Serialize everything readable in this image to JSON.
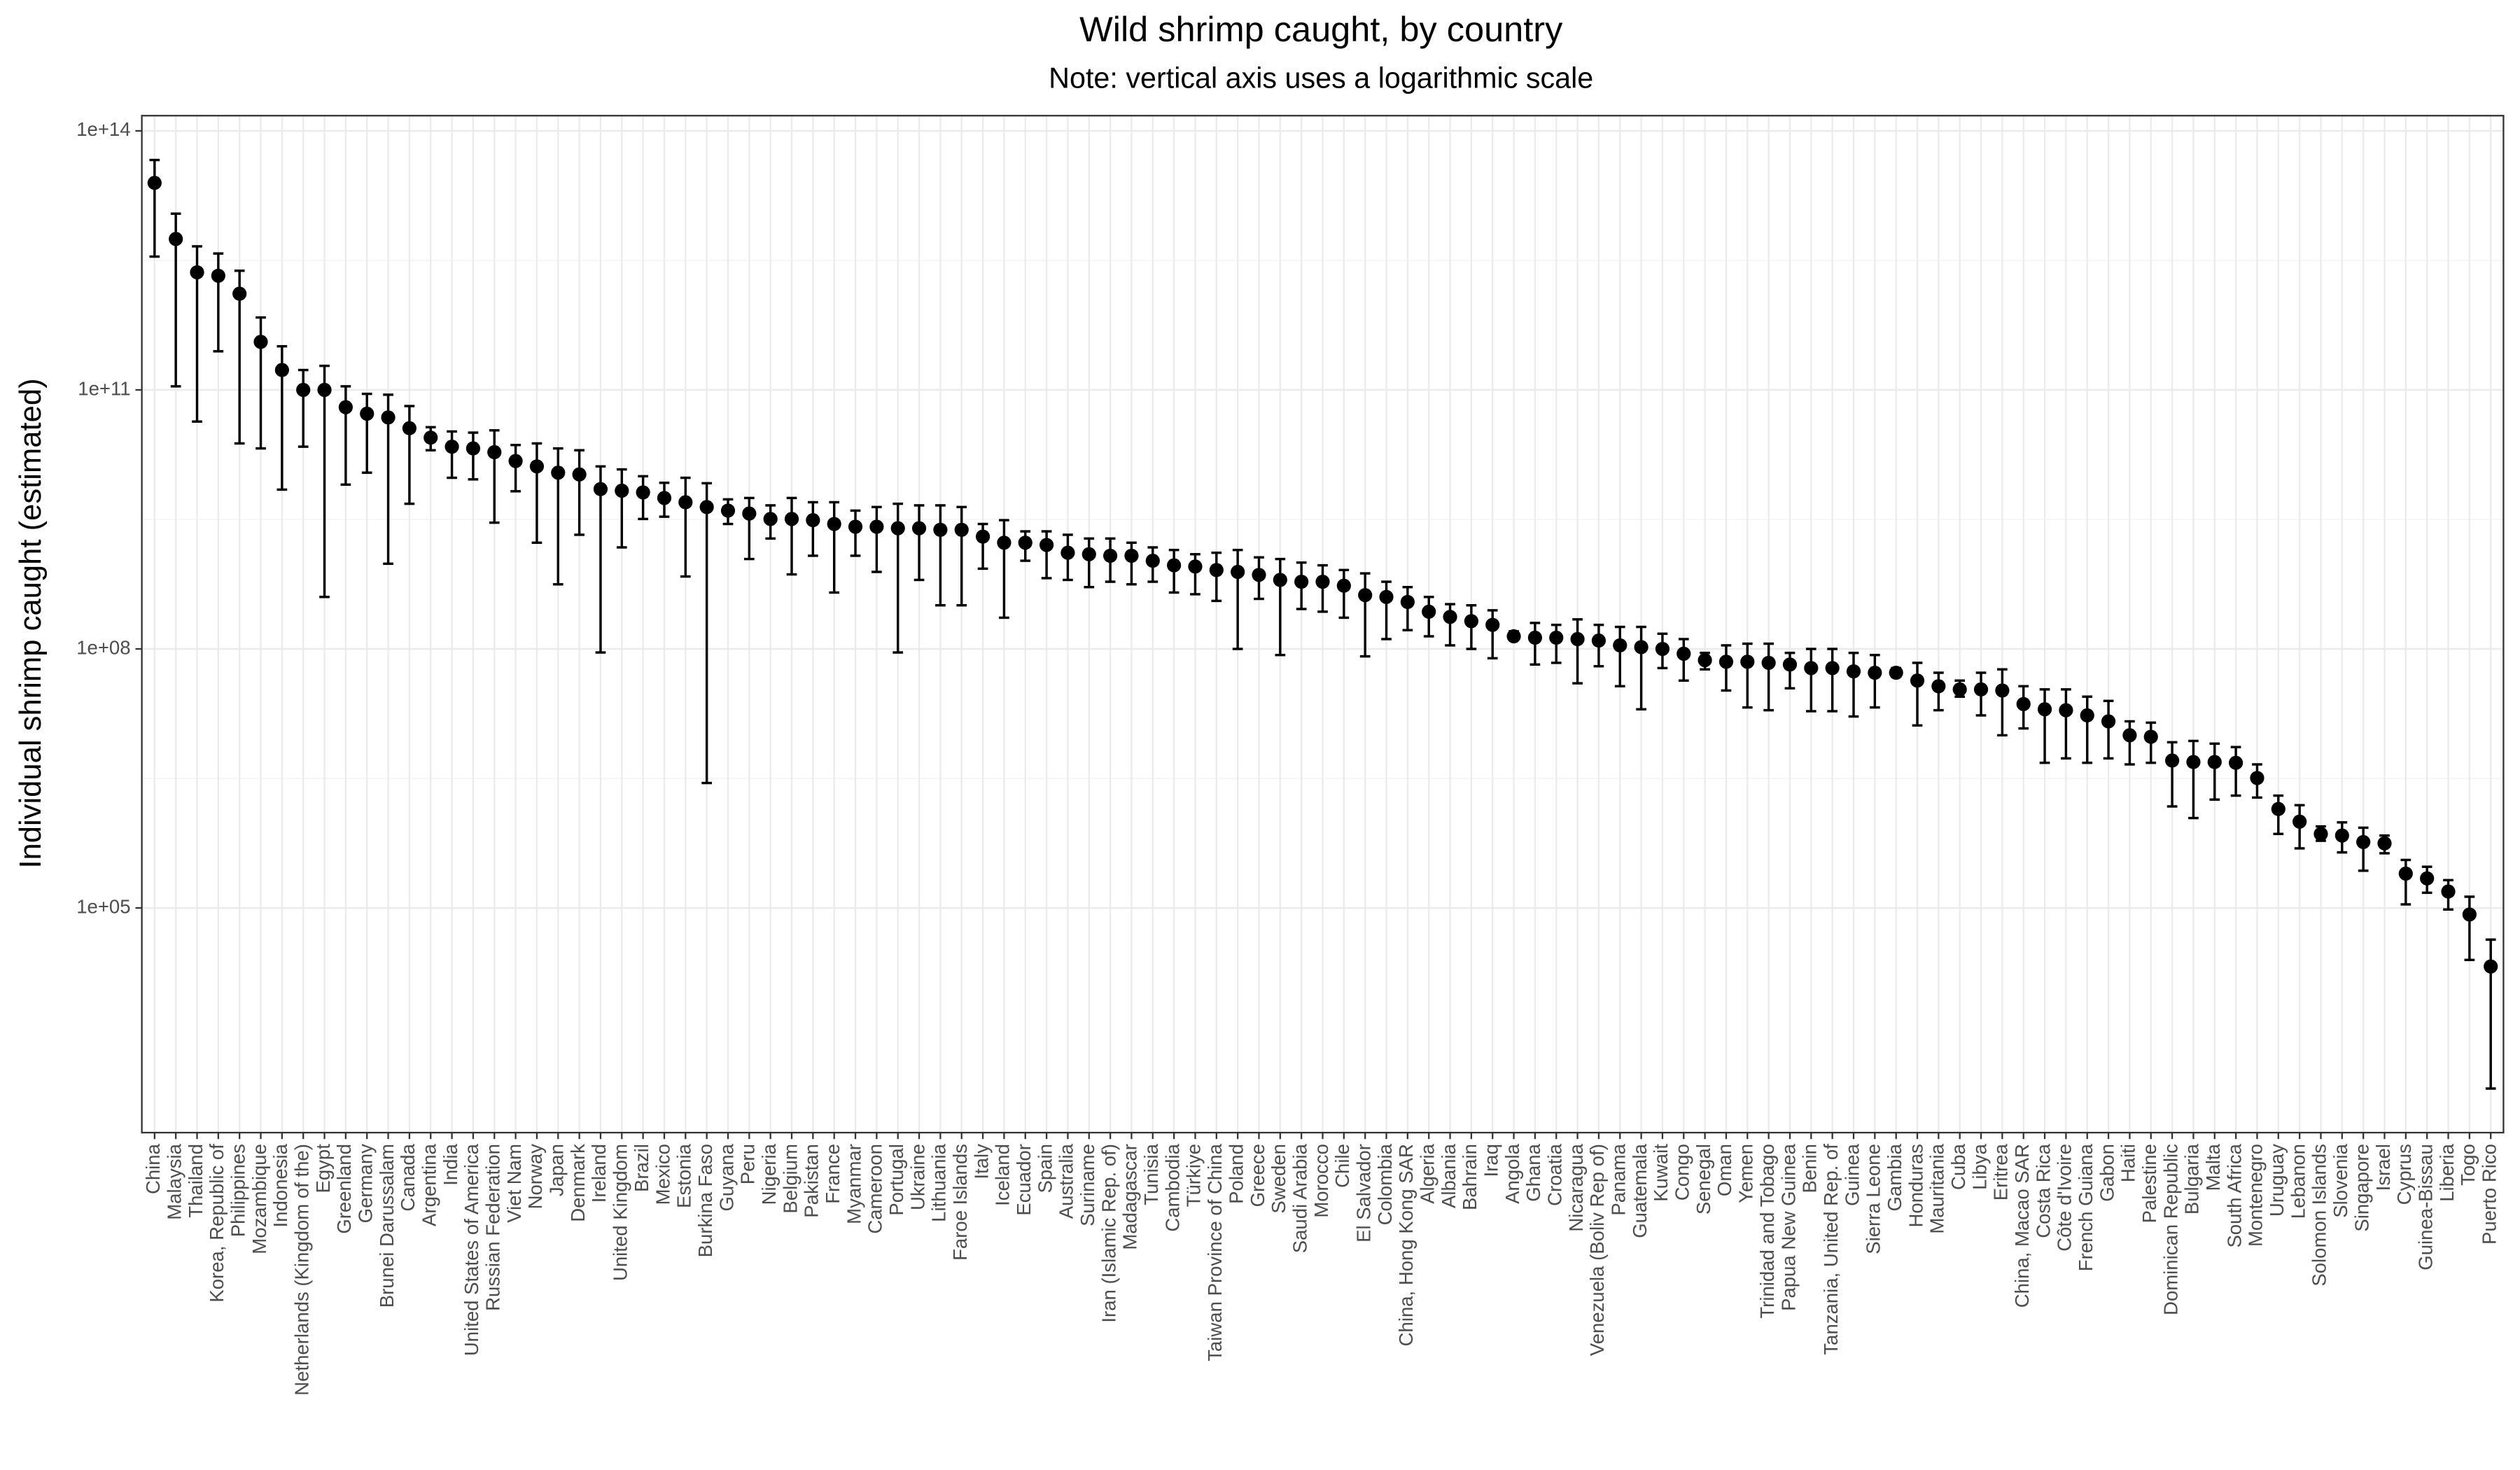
{
  "chart_data": {
    "type": "pointrange",
    "title": "Wild shrimp caught, by country",
    "subtitle": "Note: vertical axis uses a logarithmic scale",
    "y_label": "Individual shrimp caught (estimated)",
    "log_y": true,
    "grid": true,
    "color": "#000000",
    "ylim": [
      250,
      150000000000000.0
    ],
    "yticks": [
      {
        "value": 100000,
        "label": "1e+05"
      },
      {
        "value": 100000000,
        "label": "1e+08"
      },
      {
        "value": 100000000000,
        "label": "1e+11"
      },
      {
        "value": 100000000000000,
        "label": "1e+14"
      }
    ],
    "categories": [
      "China",
      "Malaysia",
      "Thailand",
      "Korea, Republic of",
      "Philippines",
      "Mozambique",
      "Indonesia",
      "Netherlands (Kingdom of the)",
      "Egypt",
      "Greenland",
      "Germany",
      "Brunei Darussalam",
      "Canada",
      "Argentina",
      "India",
      "United States of America",
      "Russian Federation",
      "Viet Nam",
      "Norway",
      "Japan",
      "Denmark",
      "Ireland",
      "United Kingdom",
      "Brazil",
      "Mexico",
      "Estonia",
      "Burkina Faso",
      "Guyana",
      "Peru",
      "Nigeria",
      "Belgium",
      "Pakistan",
      "France",
      "Myanmar",
      "Cameroon",
      "Portugal",
      "Ukraine",
      "Lithuania",
      "Faroe Islands",
      "Italy",
      "Iceland",
      "Ecuador",
      "Spain",
      "Australia",
      "Suriname",
      "Iran (Islamic Rep. of)",
      "Madagascar",
      "Tunisia",
      "Cambodia",
      "Türkiye",
      "Taiwan Province of China",
      "Poland",
      "Greece",
      "Sweden",
      "Saudi Arabia",
      "Morocco",
      "Chile",
      "El Salvador",
      "Colombia",
      "China, Hong Kong SAR",
      "Algeria",
      "Albania",
      "Bahrain",
      "Iraq",
      "Angola",
      "Ghana",
      "Croatia",
      "Nicaragua",
      "Venezuela (Boliv Rep of)",
      "Panama",
      "Guatemala",
      "Kuwait",
      "Congo",
      "Senegal",
      "Oman",
      "Yemen",
      "Trinidad and Tobago",
      "Papua New Guinea",
      "Benin",
      "Tanzania, United Rep. of",
      "Guinea",
      "Sierra Leone",
      "Gambia",
      "Honduras",
      "Mauritania",
      "Cuba",
      "Libya",
      "Eritrea",
      "China, Macao SAR",
      "Costa Rica",
      "Côte d'Ivoire",
      "French Guiana",
      "Gabon",
      "Haiti",
      "Palestine",
      "Dominican Republic",
      "Bulgaria",
      "Malta",
      "South Africa",
      "Montenegro",
      "Uruguay",
      "Lebanon",
      "Solomon Islands",
      "Slovenia",
      "Singapore",
      "Israel",
      "Cyprus",
      "Guinea-Bissau",
      "Liberia",
      "Togo",
      "Puerto Rico"
    ],
    "values": [
      25000000000000.0,
      5600000000000.0,
      2300000000000.0,
      2100000000000.0,
      1300000000000.0,
      360000000000.0,
      170000000000.0,
      100000000000.0,
      100000000000.0,
      63000000000.0,
      53000000000.0,
      48000000000.0,
      36000000000.0,
      28000000000.0,
      22000000000.0,
      21000000000.0,
      19000000000.0,
      15000000000.0,
      13000000000.0,
      11000000000.0,
      10500000000.0,
      7100000000.0,
      6800000000.0,
      6500000000.0,
      5600000000.0,
      5000000000.0,
      4400000000.0,
      4000000000.0,
      3700000000.0,
      3200000000.0,
      3200000000.0,
      3100000000.0,
      2800000000.0,
      2600000000.0,
      2600000000.0,
      2500000000.0,
      2500000000.0,
      2400000000.0,
      2400000000.0,
      2000000000.0,
      1700000000.0,
      1700000000.0,
      1600000000.0,
      1300000000.0,
      1250000000.0,
      1200000000.0,
      1200000000.0,
      1050000000.0,
      930000000.0,
      900000000.0,
      820000000.0,
      780000000.0,
      720000000.0,
      630000000.0,
      600000000.0,
      600000000.0,
      540000000.0,
      420000000.0,
      400000000.0,
      350000000.0,
      270000000.0,
      235000000.0,
      210000000.0,
      190000000.0,
      140000000.0,
      135000000.0,
      135000000.0,
      130000000.0,
      125000000.0,
      110000000.0,
      105000000.0,
      100000000.0,
      88000000.0,
      74000000.0,
      71000000.0,
      71000000.0,
      69000000.0,
      66000000.0,
      60000000.0,
      60000000.0,
      55000000.0,
      53000000.0,
      53000000.0,
      43000000.0,
      37000000.0,
      34000000.0,
      34000000.0,
      33000000.0,
      23000000.0,
      20000000.0,
      19500000.0,
      17000000.0,
      14500000.0,
      10000000.0,
      9600000.0,
      5100000.0,
      4900000.0,
      4900000.0,
      4800000.0,
      3200000.0,
      1400000.0,
      1000000.0,
      720000.0,
      690000.0,
      580000.0,
      560000.0,
      250000.0,
      220000.0,
      155000.0,
      84000.0,
      21000.0
    ],
    "lower": [
      3500000000000.0,
      110000000000.0,
      43000000000.0,
      280000000000.0,
      24000000000.0,
      21000000000.0,
      7000000000.0,
      22000000000.0,
      400000000.0,
      8000000000.0,
      11000000000.0,
      970000000.0,
      4800000000.0,
      20000000000.0,
      9600000000.0,
      9200000000.0,
      2900000000.0,
      6700000000.0,
      1700000000.0,
      560000000.0,
      2100000000.0,
      91000000.0,
      1500000000.0,
      3200000000.0,
      3400000000.0,
      690000000.0,
      2800000.0,
      2800000000.0,
      1100000000.0,
      1900000000.0,
      730000000.0,
      1200000000.0,
      450000000.0,
      1200000000.0,
      780000000.0,
      91000000.0,
      630000000.0,
      320000000.0,
      320000000.0,
      850000000.0,
      230000000.0,
      1050000000.0,
      660000000.0,
      630000000.0,
      520000000.0,
      600000000.0,
      560000000.0,
      600000000.0,
      450000000.0,
      430000000.0,
      360000000.0,
      100000000.0,
      380000000.0,
      85000000.0,
      290000000.0,
      270000000.0,
      230000000.0,
      82000000.0,
      130000000.0,
      165000000.0,
      140000000.0,
      110000000.0,
      100000000.0,
      78000000.0,
      130000000.0,
      66000000.0,
      69000000.0,
      40000000.0,
      63000000.0,
      37000000.0,
      20000000.0,
      60000000.0,
      43000000.0,
      58000000.0,
      33000000.0,
      21000000.0,
      19500000.0,
      35000000.0,
      19000000.0,
      19000000.0,
      16500000.0,
      21000000.0,
      48000000.0,
      13000000.0,
      19500000.0,
      28000000.0,
      17000000.0,
      10000000.0,
      12000000.0,
      4800000.0,
      5400000.0,
      4800000.0,
      5400000.0,
      4600000.0,
      4800000.0,
      1500000.0,
      1100000.0,
      1800000.0,
      2000000.0,
      1900000.0,
      720000.0,
      490000.0,
      600000.0,
      440000.0,
      270000.0,
      430000.0,
      110000.0,
      150000.0,
      96000.0,
      25000.0,
      810
    ],
    "upper": [
      46000000000000.0,
      11000000000000.0,
      4600000000000.0,
      3800000000000.0,
      2400000000000.0,
      690000000000.0,
      320000000000.0,
      170000000000.0,
      190000000000.0,
      110000000000.0,
      90000000000.0,
      88000000000.0,
      65000000000.0,
      37000000000.0,
      33000000000.0,
      32000000000.0,
      34000000000.0,
      23000000000.0,
      24000000000.0,
      21000000000.0,
      20000000000.0,
      13000000000.0,
      12000000000.0,
      10000000000.0,
      8400000000.0,
      9600000000.0,
      8300000000.0,
      5400000000.0,
      5600000000.0,
      4600000000.0,
      5600000000.0,
      5000000000.0,
      5000000000.0,
      4000000000.0,
      4400000000.0,
      4800000000.0,
      4600000000.0,
      4600000000.0,
      4400000000.0,
      2800000000.0,
      3100000000.0,
      2300000000.0,
      2300000000.0,
      2100000000.0,
      1900000000.0,
      1900000000.0,
      1700000000.0,
      1500000000.0,
      1400000000.0,
      1250000000.0,
      1300000000.0,
      1400000000.0,
      1150000000.0,
      1100000000.0,
      1000000000.0,
      930000000.0,
      820000000.0,
      750000000.0,
      600000000.0,
      520000000.0,
      400000000.0,
      330000000.0,
      320000000.0,
      280000000.0,
      160000000.0,
      200000000.0,
      190000000.0,
      220000000.0,
      190000000.0,
      180000000.0,
      180000000.0,
      150000000.0,
      130000000.0,
      90000000.0,
      110000000.0,
      115000000.0,
      115000000.0,
      90000000.0,
      100000000.0,
      100000000.0,
      90000000.0,
      85000000.0,
      60000000.0,
      69000000.0,
      53000000.0,
      43000000.0,
      53000000.0,
      58000000.0,
      37000000.0,
      34000000.0,
      34000000.0,
      28000000.0,
      25000000.0,
      14500000.0,
      14000000.0,
      8300000.0,
      8600000.0,
      8000000.0,
      7300000.0,
      4600000.0,
      2000000.0,
      1550000.0,
      880000.0,
      980000.0,
      850000.0,
      690000.0,
      360000.0,
      300000.0,
      210000.0,
      135000.0,
      43000.0
    ]
  }
}
